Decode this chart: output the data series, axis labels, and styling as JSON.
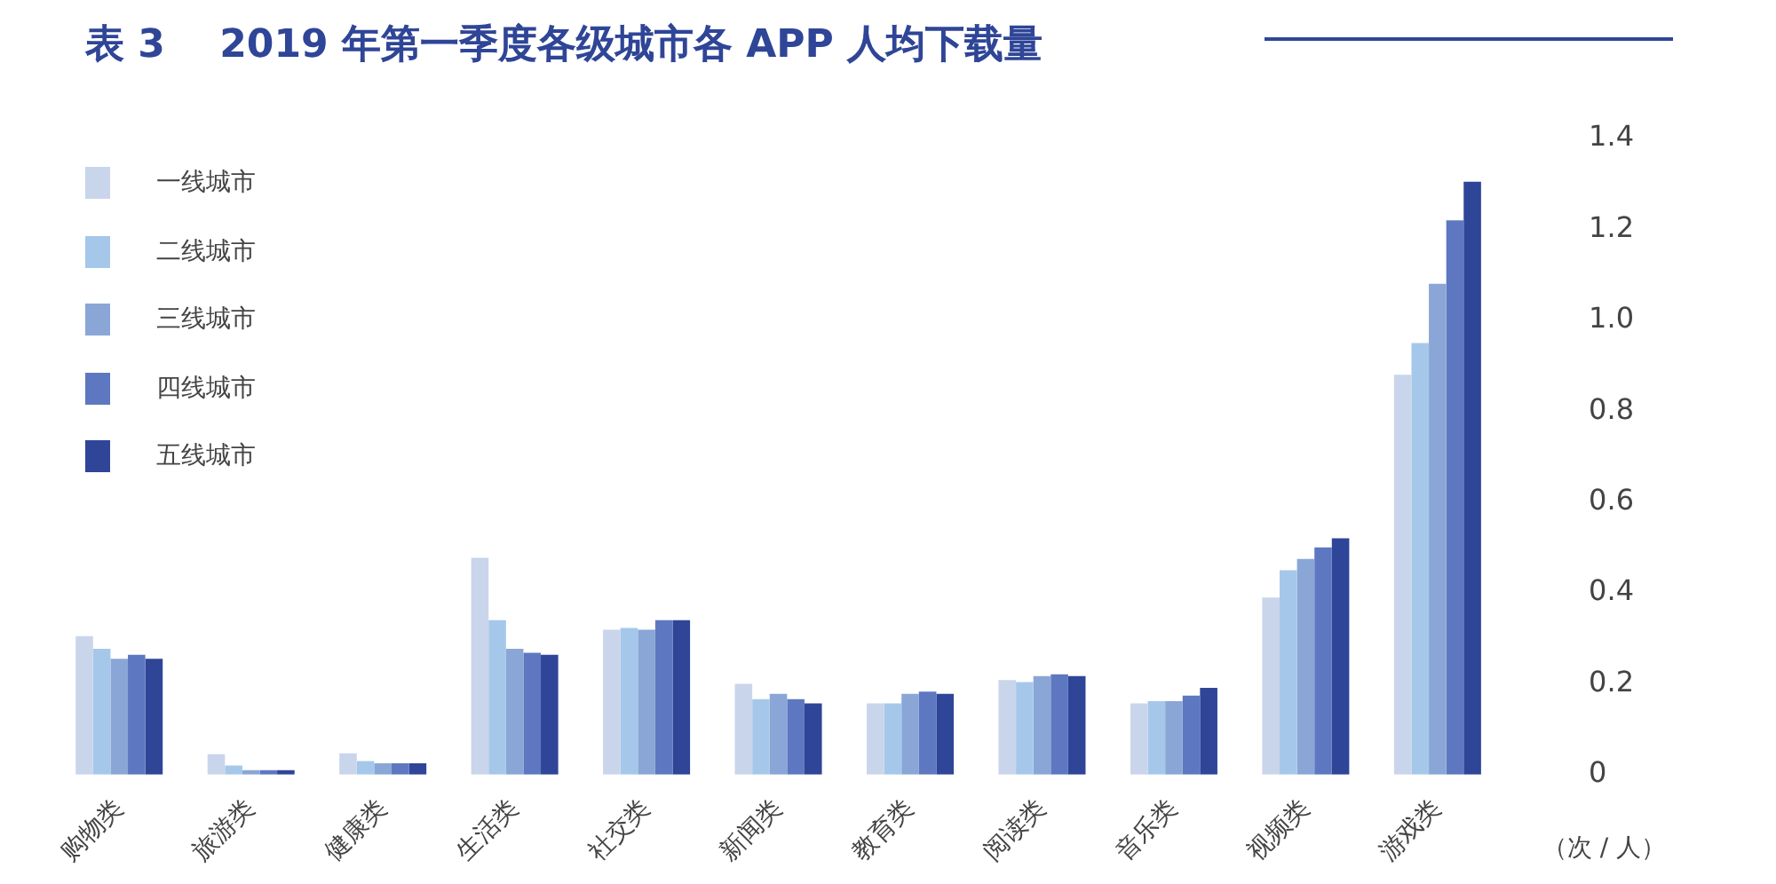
{
  "chart_data": {
    "type": "bar",
    "title": "表 3    2019 年第一季度各级城市各 APP 人均下载量",
    "ylabel": "（次 / 人）",
    "categories": [
      "购物类",
      "旅游类",
      "健康类",
      "生活类",
      "社交类",
      "新闻类",
      "教育类",
      "阅读类",
      "音乐类",
      "视频类",
      "游戏类"
    ],
    "series": [
      {
        "name": "一线城市",
        "color": "#c9d5eb",
        "values": [
          0.305,
          0.045,
          0.047,
          0.477,
          0.319,
          0.2,
          0.157,
          0.208,
          0.157,
          0.39,
          0.88
        ]
      },
      {
        "name": "二线城市",
        "color": "#a5c8ea",
        "values": [
          0.277,
          0.02,
          0.03,
          0.34,
          0.323,
          0.166,
          0.157,
          0.204,
          0.162,
          0.45,
          0.95
        ]
      },
      {
        "name": "三线城市",
        "color": "#8aa6d6",
        "values": [
          0.255,
          0.01,
          0.025,
          0.277,
          0.319,
          0.178,
          0.178,
          0.217,
          0.162,
          0.475,
          1.08
        ]
      },
      {
        "name": "四线城市",
        "color": "#5d78c1",
        "values": [
          0.264,
          0.01,
          0.025,
          0.268,
          0.34,
          0.166,
          0.183,
          0.221,
          0.174,
          0.5,
          1.22
        ]
      },
      {
        "name": "五线城市",
        "color": "#2f4597",
        "values": [
          0.255,
          0.01,
          0.025,
          0.264,
          0.34,
          0.157,
          0.178,
          0.217,
          0.191,
          0.52,
          1.305
        ]
      }
    ],
    "ylim": [
      0,
      1.4
    ],
    "yticks": [
      0,
      0.2,
      0.4,
      0.6,
      0.8,
      {
        "value": 1,
        "label": "1.0"
      },
      1.2,
      1.4
    ],
    "grid": false,
    "legend": "top left"
  }
}
